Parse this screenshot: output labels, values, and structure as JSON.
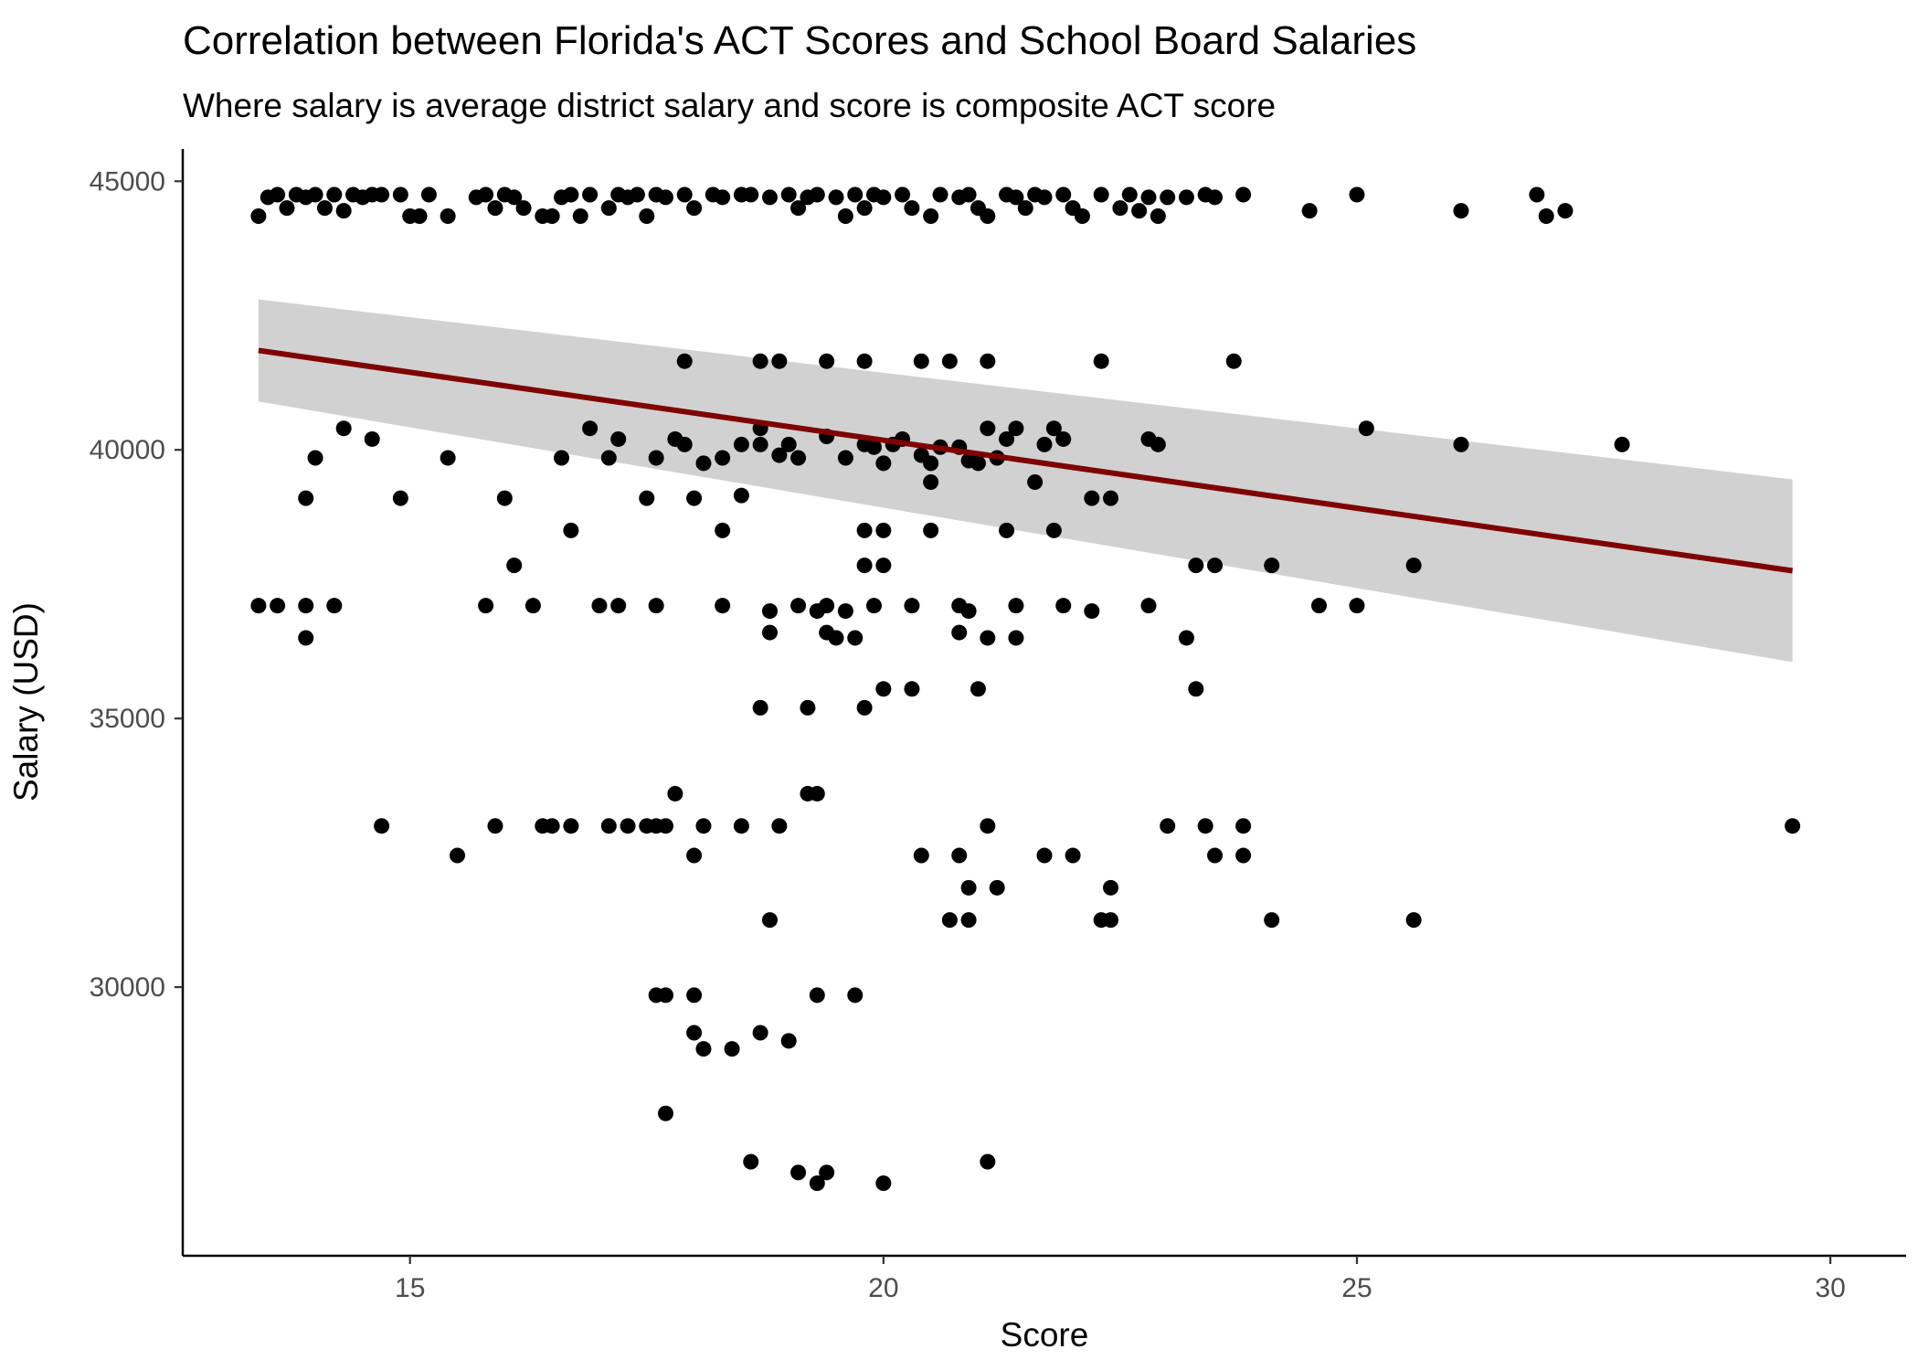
{
  "chart_data": {
    "type": "scatter",
    "title": "Correlation between Florida's ACT Scores and School Board Salaries",
    "subtitle": "Where salary is average district salary and score is composite ACT score",
    "xlabel": "Score",
    "ylabel": "Salary (USD)",
    "xlim": [
      12.6,
      30.8
    ],
    "ylim": [
      25000,
      45600
    ],
    "xticks": [
      15,
      20,
      25,
      30
    ],
    "yticks": [
      30000,
      35000,
      40000,
      45000
    ],
    "x_tick_labels": [
      "15",
      "20",
      "25",
      "30"
    ],
    "y_tick_labels": [
      "30000",
      "35000",
      "40000",
      "45000"
    ],
    "grid": false,
    "legend": "none",
    "colors": {
      "points": "#000000",
      "trend_line": "#7f0000",
      "confidence_band": "#cccccc",
      "axis": "#000000",
      "tick_labels": "#4d4d4d"
    },
    "trend": {
      "method": "linear",
      "x": [
        13.4,
        29.6
      ],
      "y": [
        41850,
        37750
      ],
      "ci_upper": [
        42800,
        39450
      ],
      "ci_lower": [
        40900,
        36050
      ]
    },
    "points": [
      [
        13.4,
        44350
      ],
      [
        13.5,
        44700
      ],
      [
        13.6,
        44750
      ],
      [
        13.7,
        44500
      ],
      [
        13.8,
        44750
      ],
      [
        13.9,
        44700
      ],
      [
        14.0,
        44750
      ],
      [
        14.1,
        44500
      ],
      [
        14.2,
        44750
      ],
      [
        14.3,
        44450
      ],
      [
        14.4,
        44750
      ],
      [
        14.5,
        44700
      ],
      [
        14.6,
        44750
      ],
      [
        14.7,
        44750
      ],
      [
        14.9,
        44750
      ],
      [
        15.0,
        44350
      ],
      [
        15.1,
        44350
      ],
      [
        15.2,
        44750
      ],
      [
        15.4,
        44350
      ],
      [
        15.7,
        44700
      ],
      [
        15.8,
        44750
      ],
      [
        15.9,
        44500
      ],
      [
        16.0,
        44750
      ],
      [
        16.1,
        44700
      ],
      [
        16.2,
        44500
      ],
      [
        16.4,
        44350
      ],
      [
        16.5,
        44350
      ],
      [
        16.6,
        44700
      ],
      [
        16.7,
        44750
      ],
      [
        16.8,
        44350
      ],
      [
        16.9,
        44750
      ],
      [
        17.1,
        44500
      ],
      [
        17.2,
        44750
      ],
      [
        17.3,
        44700
      ],
      [
        17.4,
        44750
      ],
      [
        17.5,
        44350
      ],
      [
        17.6,
        44750
      ],
      [
        17.7,
        44700
      ],
      [
        17.9,
        44750
      ],
      [
        18.0,
        44500
      ],
      [
        18.2,
        44750
      ],
      [
        18.3,
        44700
      ],
      [
        18.5,
        44750
      ],
      [
        18.6,
        44750
      ],
      [
        18.8,
        44700
      ],
      [
        19.0,
        44750
      ],
      [
        19.1,
        44500
      ],
      [
        19.2,
        44700
      ],
      [
        19.3,
        44750
      ],
      [
        19.5,
        44700
      ],
      [
        19.6,
        44350
      ],
      [
        19.7,
        44750
      ],
      [
        19.8,
        44500
      ],
      [
        19.9,
        44750
      ],
      [
        20.0,
        44700
      ],
      [
        20.2,
        44750
      ],
      [
        20.3,
        44500
      ],
      [
        20.5,
        44350
      ],
      [
        20.6,
        44750
      ],
      [
        20.8,
        44700
      ],
      [
        20.9,
        44750
      ],
      [
        21.0,
        44500
      ],
      [
        21.1,
        44350
      ],
      [
        21.3,
        44750
      ],
      [
        21.4,
        44700
      ],
      [
        21.5,
        44500
      ],
      [
        21.6,
        44750
      ],
      [
        21.7,
        44700
      ],
      [
        21.9,
        44750
      ],
      [
        22.0,
        44500
      ],
      [
        22.1,
        44350
      ],
      [
        22.3,
        44750
      ],
      [
        22.5,
        44500
      ],
      [
        22.6,
        44750
      ],
      [
        22.7,
        44450
      ],
      [
        22.8,
        44700
      ],
      [
        22.9,
        44350
      ],
      [
        23.0,
        44700
      ],
      [
        23.2,
        44700
      ],
      [
        23.4,
        44750
      ],
      [
        23.5,
        44700
      ],
      [
        23.8,
        44750
      ],
      [
        24.5,
        44450
      ],
      [
        25.0,
        44750
      ],
      [
        26.1,
        44450
      ],
      [
        26.9,
        44750
      ],
      [
        27.0,
        44350
      ],
      [
        27.2,
        44450
      ],
      [
        17.9,
        41650
      ],
      [
        18.7,
        41650
      ],
      [
        18.9,
        41650
      ],
      [
        19.4,
        41650
      ],
      [
        19.8,
        41650
      ],
      [
        20.4,
        41650
      ],
      [
        20.7,
        41650
      ],
      [
        21.1,
        41650
      ],
      [
        22.3,
        41650
      ],
      [
        23.7,
        41650
      ],
      [
        14.0,
        39850
      ],
      [
        14.3,
        40400
      ],
      [
        14.6,
        40200
      ],
      [
        13.9,
        39100
      ],
      [
        15.4,
        39850
      ],
      [
        14.9,
        39100
      ],
      [
        16.0,
        39100
      ],
      [
        16.6,
        39850
      ],
      [
        16.9,
        40400
      ],
      [
        17.1,
        39850
      ],
      [
        17.2,
        40200
      ],
      [
        17.5,
        39100
      ],
      [
        17.6,
        39850
      ],
      [
        17.8,
        40200
      ],
      [
        17.9,
        40100
      ],
      [
        18.0,
        39100
      ],
      [
        18.1,
        39750
      ],
      [
        18.3,
        39850
      ],
      [
        18.5,
        40100
      ],
      [
        18.5,
        39150
      ],
      [
        18.7,
        40100
      ],
      [
        18.7,
        40400
      ],
      [
        18.9,
        39900
      ],
      [
        19.0,
        40100
      ],
      [
        19.1,
        39850
      ],
      [
        19.4,
        40250
      ],
      [
        19.6,
        39850
      ],
      [
        19.8,
        40100
      ],
      [
        19.9,
        40050
      ],
      [
        20.0,
        39750
      ],
      [
        20.1,
        40100
      ],
      [
        20.2,
        40200
      ],
      [
        20.4,
        39900
      ],
      [
        20.5,
        39400
      ],
      [
        20.5,
        39750
      ],
      [
        20.6,
        40050
      ],
      [
        20.8,
        40050
      ],
      [
        20.9,
        39800
      ],
      [
        21.0,
        39750
      ],
      [
        21.1,
        40400
      ],
      [
        21.2,
        39850
      ],
      [
        21.3,
        40200
      ],
      [
        21.4,
        40400
      ],
      [
        21.6,
        39400
      ],
      [
        21.7,
        40100
      ],
      [
        21.8,
        40400
      ],
      [
        21.9,
        40200
      ],
      [
        22.2,
        39100
      ],
      [
        22.4,
        39100
      ],
      [
        22.8,
        40200
      ],
      [
        22.9,
        40100
      ],
      [
        25.1,
        40400
      ],
      [
        26.1,
        40100
      ],
      [
        27.8,
        40100
      ],
      [
        16.7,
        38500
      ],
      [
        18.3,
        38500
      ],
      [
        19.8,
        38500
      ],
      [
        20.0,
        38500
      ],
      [
        20.5,
        38500
      ],
      [
        21.3,
        38500
      ],
      [
        21.8,
        38500
      ],
      [
        16.1,
        37850
      ],
      [
        19.8,
        37850
      ],
      [
        20.0,
        37850
      ],
      [
        23.3,
        37850
      ],
      [
        23.5,
        37850
      ],
      [
        24.1,
        37850
      ],
      [
        25.6,
        37850
      ],
      [
        13.4,
        37100
      ],
      [
        13.6,
        37100
      ],
      [
        13.9,
        37100
      ],
      [
        14.2,
        37100
      ],
      [
        15.8,
        37100
      ],
      [
        16.3,
        37100
      ],
      [
        17.0,
        37100
      ],
      [
        17.2,
        37100
      ],
      [
        17.6,
        37100
      ],
      [
        18.3,
        37100
      ],
      [
        18.8,
        37000
      ],
      [
        19.1,
        37100
      ],
      [
        19.3,
        37000
      ],
      [
        19.4,
        37100
      ],
      [
        19.6,
        37000
      ],
      [
        19.9,
        37100
      ],
      [
        20.3,
        37100
      ],
      [
        20.8,
        37100
      ],
      [
        20.9,
        37000
      ],
      [
        21.4,
        37100
      ],
      [
        21.9,
        37100
      ],
      [
        22.2,
        37000
      ],
      [
        22.8,
        37100
      ],
      [
        24.6,
        37100
      ],
      [
        25.0,
        37100
      ],
      [
        13.9,
        36500
      ],
      [
        18.8,
        36600
      ],
      [
        19.4,
        36600
      ],
      [
        19.5,
        36500
      ],
      [
        19.7,
        36500
      ],
      [
        20.8,
        36600
      ],
      [
        21.1,
        36500
      ],
      [
        21.4,
        36500
      ],
      [
        23.2,
        36500
      ],
      [
        20.0,
        35550
      ],
      [
        20.3,
        35550
      ],
      [
        21.0,
        35550
      ],
      [
        23.3,
        35550
      ],
      [
        18.7,
        35200
      ],
      [
        19.2,
        35200
      ],
      [
        19.8,
        35200
      ],
      [
        14.7,
        33000
      ],
      [
        15.9,
        33000
      ],
      [
        16.4,
        33000
      ],
      [
        16.5,
        33000
      ],
      [
        16.7,
        33000
      ],
      [
        17.1,
        33000
      ],
      [
        17.3,
        33000
      ],
      [
        17.5,
        33000
      ],
      [
        17.6,
        33000
      ],
      [
        17.7,
        33000
      ],
      [
        18.1,
        33000
      ],
      [
        18.5,
        33000
      ],
      [
        18.9,
        33000
      ],
      [
        21.1,
        33000
      ],
      [
        23.0,
        33000
      ],
      [
        23.4,
        33000
      ],
      [
        23.8,
        33000
      ],
      [
        29.6,
        33000
      ],
      [
        17.8,
        33600
      ],
      [
        19.2,
        33600
      ],
      [
        19.3,
        33600
      ],
      [
        15.5,
        32450
      ],
      [
        18.0,
        32450
      ],
      [
        20.4,
        32450
      ],
      [
        20.8,
        32450
      ],
      [
        21.7,
        32450
      ],
      [
        22.0,
        32450
      ],
      [
        23.5,
        32450
      ],
      [
        23.8,
        32450
      ],
      [
        20.9,
        31850
      ],
      [
        21.2,
        31850
      ],
      [
        22.4,
        31850
      ],
      [
        18.8,
        31250
      ],
      [
        20.7,
        31250
      ],
      [
        20.9,
        31250
      ],
      [
        22.3,
        31250
      ],
      [
        22.4,
        31250
      ],
      [
        24.1,
        31250
      ],
      [
        25.6,
        31250
      ],
      [
        17.6,
        29850
      ],
      [
        17.7,
        29850
      ],
      [
        18.0,
        29850
      ],
      [
        19.3,
        29850
      ],
      [
        19.7,
        29850
      ],
      [
        18.0,
        29150
      ],
      [
        18.7,
        29150
      ],
      [
        19.0,
        29000
      ],
      [
        18.1,
        28850
      ],
      [
        18.4,
        28850
      ],
      [
        17.7,
        27650
      ],
      [
        18.6,
        26750
      ],
      [
        19.1,
        26550
      ],
      [
        19.3,
        26350
      ],
      [
        19.4,
        26550
      ],
      [
        20.0,
        26350
      ],
      [
        21.1,
        26750
      ]
    ]
  }
}
